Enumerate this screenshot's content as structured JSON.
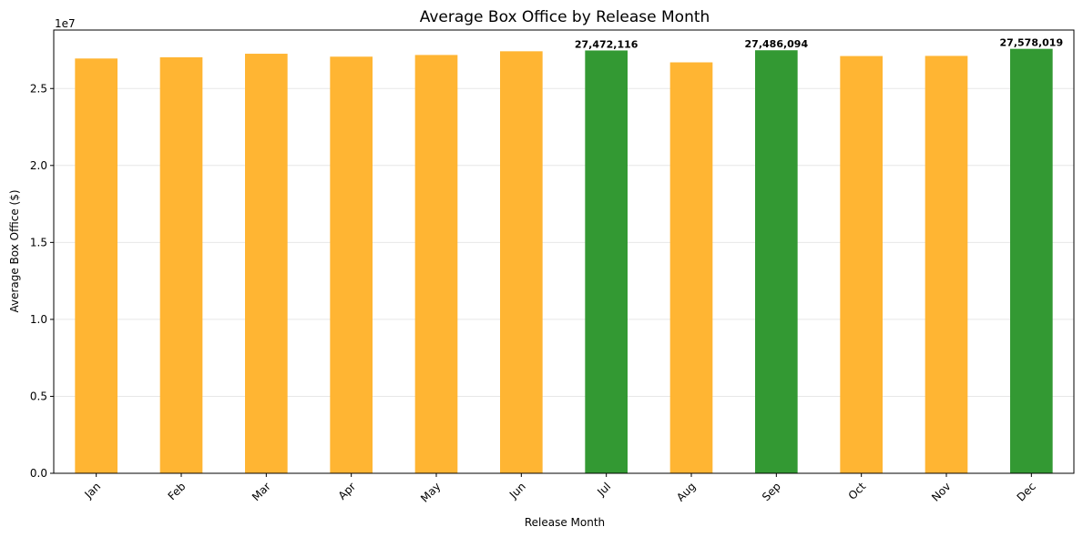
{
  "chart_data": {
    "type": "bar",
    "title": "Average Box Office by Release Month",
    "xlabel": "Release Month",
    "ylabel": "Average Box Office ($)",
    "y_offset_text": "1e7",
    "categories": [
      "Jan",
      "Feb",
      "Mar",
      "Apr",
      "May",
      "Jun",
      "Jul",
      "Aug",
      "Sep",
      "Oct",
      "Nov",
      "Dec"
    ],
    "values": [
      26950000,
      27030000,
      27260000,
      27070000,
      27180000,
      27420000,
      27472116,
      26700000,
      27486094,
      27110000,
      27120000,
      27578019
    ],
    "highlighted": [
      false,
      false,
      false,
      false,
      false,
      false,
      true,
      false,
      true,
      false,
      false,
      true
    ],
    "data_labels": [
      "",
      "",
      "",
      "",
      "",
      "",
      "27,472,116",
      "",
      "27,486,094",
      "",
      "",
      "27,578,019"
    ],
    "ylim": [
      0,
      28800000
    ],
    "yticks": [
      0,
      5000000,
      10000000,
      15000000,
      20000000,
      25000000
    ],
    "ytick_labels": [
      "0.0",
      "0.5",
      "1.0",
      "1.5",
      "2.0",
      "2.5"
    ],
    "grid": "y",
    "colors": {
      "default": "#FFB533",
      "highlight": "#339933"
    }
  }
}
